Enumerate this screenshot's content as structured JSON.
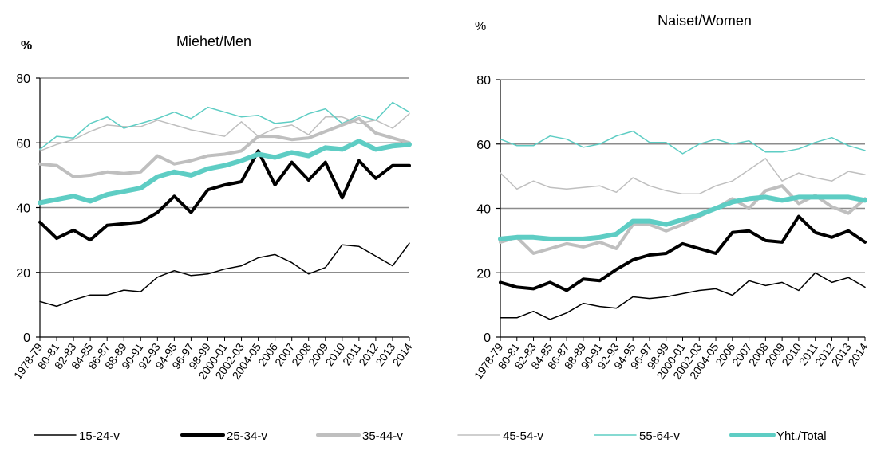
{
  "chart_data": [
    {
      "type": "line",
      "title": "Miehet/Men",
      "ylabel": "%",
      "ylim": [
        0,
        80
      ],
      "yticks": [
        0,
        20,
        40,
        60,
        80
      ],
      "grid": true,
      "categories": [
        "1978-79",
        "80-81",
        "82-83",
        "84-85",
        "86-87",
        "88-89",
        "90-91",
        "92-93",
        "94-95",
        "96-97",
        "98-99",
        "2000-01",
        "2002-03",
        "2004-05",
        "2006",
        "2007",
        "2008",
        "2009",
        "2010",
        "2011",
        "2012",
        "2013",
        "2014"
      ],
      "series": [
        {
          "name": "15-24-v",
          "values": [
            11,
            9.5,
            11.5,
            13,
            13,
            14.5,
            14,
            18.5,
            20.5,
            19,
            19.5,
            21,
            22,
            24.5,
            25.5,
            23,
            19.5,
            21.5,
            28.5,
            28,
            25,
            22,
            29
          ]
        },
        {
          "name": "25-34-v",
          "values": [
            35.5,
            30.5,
            33,
            30,
            34.5,
            35,
            35.5,
            38.5,
            43.5,
            38.5,
            45.5,
            47,
            48,
            57.5,
            47,
            54,
            48.5,
            54,
            43,
            54.5,
            49,
            53,
            53
          ]
        },
        {
          "name": "35-44-v",
          "values": [
            53.5,
            53,
            49.5,
            50,
            51,
            50.5,
            51,
            56,
            53.5,
            54.5,
            56,
            56.5,
            57.5,
            62,
            62,
            61,
            61.5,
            63.5,
            65.5,
            67.5,
            63,
            61.5,
            60
          ]
        },
        {
          "name": "45-54-v",
          "values": [
            57.5,
            59.5,
            61,
            63.5,
            65.5,
            65,
            65,
            67,
            65.5,
            64,
            63,
            62,
            66.5,
            62,
            64.5,
            65.5,
            62.5,
            68,
            68,
            66,
            67,
            64.5,
            69
          ]
        },
        {
          "name": "55-64-v",
          "values": [
            58,
            62,
            61.5,
            66,
            68,
            64.5,
            66,
            67.5,
            69.5,
            67.5,
            71,
            69.5,
            68,
            68.5,
            66,
            66.5,
            69,
            70.5,
            66,
            68.5,
            67,
            72.5,
            69.5
          ]
        },
        {
          "name": "Yht./Total",
          "values": [
            41.5,
            42.5,
            43.5,
            42,
            44,
            45,
            46,
            49.5,
            51,
            50,
            52,
            53,
            54.5,
            56.5,
            55.5,
            57,
            56,
            58.5,
            58,
            60.5,
            58,
            59,
            59.5
          ]
        }
      ]
    },
    {
      "type": "line",
      "title": "Naiset/Women",
      "ylabel": "%",
      "ylim": [
        0,
        80
      ],
      "yticks": [
        0,
        20,
        40,
        60,
        80
      ],
      "grid": true,
      "categories": [
        "1978-79",
        "80-81",
        "82-83",
        "84-85",
        "86-87",
        "88-89",
        "90-91",
        "92-93",
        "94-95",
        "96-97",
        "98-99",
        "2000-01",
        "2002-03",
        "2004-05",
        "2006",
        "2007",
        "2008",
        "2009",
        "2010",
        "2011",
        "2012",
        "2013",
        "2014"
      ],
      "series": [
        {
          "name": "15-24-v",
          "values": [
            6,
            6,
            8,
            5.5,
            7.5,
            10.5,
            9.5,
            9,
            12.5,
            12,
            12.5,
            13.5,
            14.5,
            15,
            13,
            17.5,
            16,
            17,
            14.5,
            20,
            17,
            18.5,
            15.5
          ]
        },
        {
          "name": "25-34-v",
          "values": [
            17,
            15.5,
            15,
            17,
            14.5,
            18,
            17.5,
            21,
            24,
            25.5,
            26,
            29,
            27.5,
            26,
            32.5,
            33,
            30,
            29.5,
            37.5,
            32.5,
            31,
            33,
            29.5
          ]
        },
        {
          "name": "35-44-v",
          "values": [
            29.5,
            31,
            26,
            27.5,
            29,
            28,
            29.5,
            27.5,
            35,
            35,
            33,
            35,
            37.5,
            40,
            43,
            40,
            45.5,
            47,
            41.5,
            44,
            40.5,
            38.5,
            43
          ]
        },
        {
          "name": "45-54-v",
          "values": [
            51,
            46,
            48.5,
            46.5,
            46,
            46.5,
            47,
            45,
            49.5,
            47,
            45.5,
            44.5,
            44.5,
            47,
            48.5,
            52,
            55.5,
            48.5,
            51,
            49.5,
            48.5,
            51.5,
            50.5
          ]
        },
        {
          "name": "55-64-v",
          "values": [
            61.5,
            59.5,
            59.5,
            62.5,
            61.5,
            59,
            60,
            62.5,
            64,
            60.5,
            60.5,
            57,
            60,
            61.5,
            60,
            61,
            57.5,
            57.5,
            58.5,
            60.5,
            62,
            59.5,
            58
          ]
        },
        {
          "name": "Yht./Total",
          "values": [
            30.5,
            31,
            31,
            30.5,
            30.5,
            30.5,
            31,
            32,
            36,
            36,
            35,
            36.5,
            38,
            40,
            42,
            43,
            43.5,
            42.5,
            43.5,
            43.5,
            43.5,
            43.5,
            42.5
          ]
        }
      ]
    }
  ],
  "series_styles": [
    {
      "name": "15-24-v",
      "color": "#000000",
      "width": 1.5
    },
    {
      "name": "25-34-v",
      "color": "#000000",
      "width": 4
    },
    {
      "name": "35-44-v",
      "color": "#bfbfbf",
      "width": 4
    },
    {
      "name": "45-54-v",
      "color": "#bfbfbf",
      "width": 1.5
    },
    {
      "name": "55-64-v",
      "color": "#5ecdc4",
      "width": 1.5
    },
    {
      "name": "Yht./Total",
      "color": "#5ecdc4",
      "width": 6
    }
  ],
  "legend": {
    "placement": "bottom",
    "items": [
      "15-24-v",
      "25-34-v",
      "35-44-v",
      "45-54-v",
      "55-64-v",
      "Yht./Total"
    ]
  }
}
